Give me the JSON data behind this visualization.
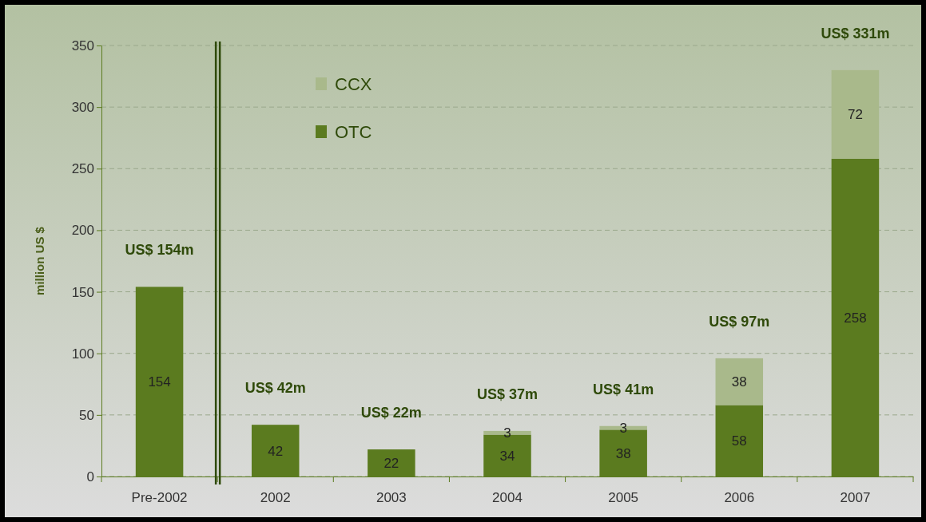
{
  "chart_data": {
    "type": "bar",
    "stacked": true,
    "ylabel": "million US $",
    "categories": [
      "Pre-2002",
      "2002",
      "2003",
      "2004",
      "2005",
      "2006",
      "2007"
    ],
    "series": [
      {
        "name": "OTC",
        "color": "#5b7b1f",
        "values": [
          154,
          42,
          22,
          34,
          38,
          58,
          258
        ]
      },
      {
        "name": "CCX",
        "color": "#a9b98b",
        "values": [
          null,
          null,
          null,
          3,
          3,
          38,
          72
        ]
      }
    ],
    "ylim": [
      0,
      350
    ],
    "yticks": [
      0,
      50,
      100,
      150,
      200,
      250,
      300,
      350
    ],
    "grid": "y",
    "legend": "top left",
    "data_labels": true,
    "totals": [
      "US$ 154m",
      "US$ 42m",
      "US$ 22m",
      "US$ 37m",
      "US$ 41m",
      "US$ 97m",
      "US$ 331m"
    ]
  }
}
